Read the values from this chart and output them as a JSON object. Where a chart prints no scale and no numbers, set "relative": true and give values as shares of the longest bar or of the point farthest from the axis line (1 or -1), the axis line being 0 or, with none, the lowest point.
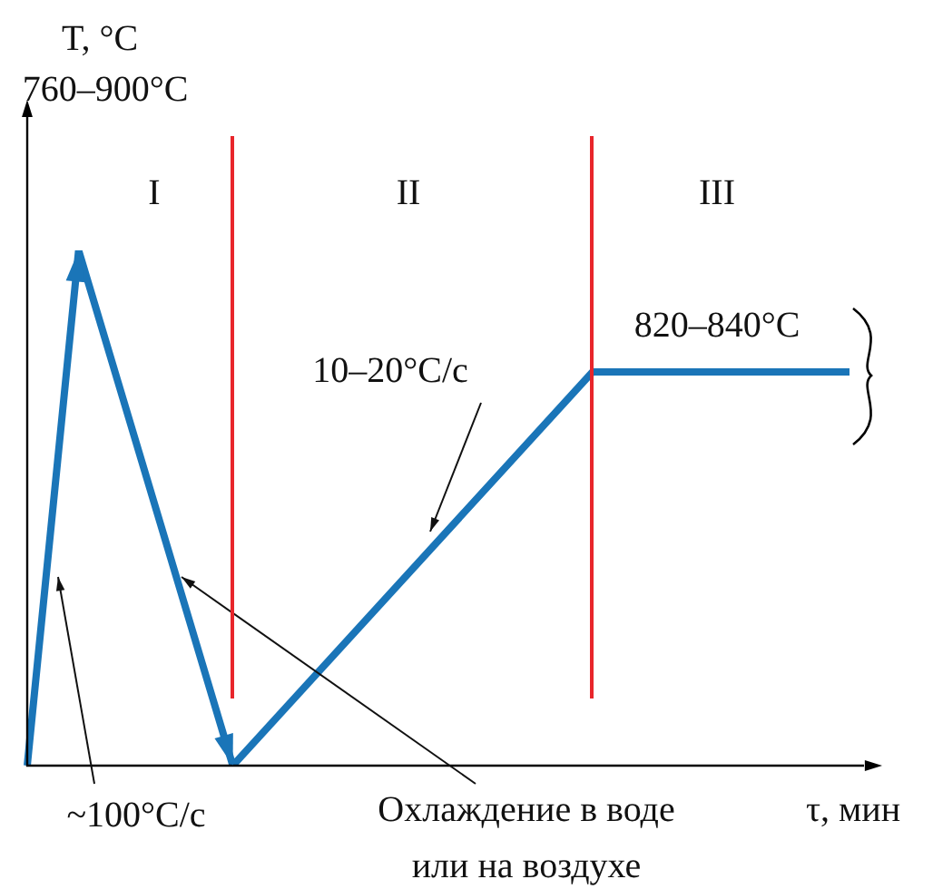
{
  "chart_data": {
    "type": "line",
    "relative": true,
    "xlabel": "τ, мин",
    "categories": [
      null,
      null,
      null,
      null,
      null,
      null,
      null,
      null,
      null,
      null,
      null,
      null,
      null,
      null,
      null,
      null,
      null
    ],
    "series": [
      {
        "color": "#1a75b8",
        "values": [
          0,
          1,
          null,
          null,
          0,
          null,
          null,
          null,
          null,
          null,
          null,
          0.764,
          null,
          null,
          null,
          null,
          0.764
        ]
      }
    ],
    "annotations": [
      "760–900°C",
      "I",
      "II",
      "III",
      "10–20°C/с",
      "820–840°C",
      "~100°C/с",
      "Охлаждение в воде или на воздухе",
      "T, °C"
    ],
    "marker": "none",
    "line_style": "solid"
  }
}
